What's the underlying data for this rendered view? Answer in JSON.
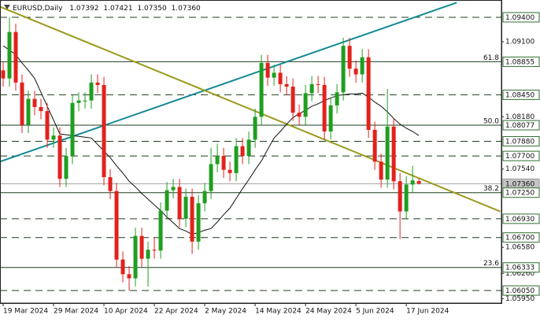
{
  "chart_data": {
    "type": "candlestick",
    "header": {
      "symbol": "EURUSD,Daily",
      "ohlc": [
        "1.07392",
        "1.07421",
        "1.07350",
        "1.07360"
      ]
    },
    "categories": [
      "19 Mar 2024",
      null,
      null,
      null,
      null,
      null,
      null,
      null,
      "29 Mar 2024",
      null,
      null,
      null,
      null,
      null,
      null,
      null,
      "10 Apr 2024",
      null,
      null,
      null,
      null,
      null,
      null,
      null,
      "22 Apr 2024",
      null,
      null,
      null,
      null,
      null,
      null,
      null,
      "2 May 2024",
      null,
      null,
      null,
      null,
      null,
      null,
      null,
      "14 May 2024",
      null,
      null,
      null,
      null,
      null,
      null,
      null,
      "24 May 2024",
      null,
      null,
      null,
      null,
      null,
      null,
      null,
      "5 Jun 2024",
      null,
      null,
      null,
      null,
      null,
      null,
      null,
      "17 Jun 2024",
      null,
      null
    ],
    "open": [
      1.0875,
      1.0865,
      1.0922,
      1.086,
      1.0808,
      1.084,
      1.083,
      1.0825,
      1.079,
      1.0795,
      1.0742,
      1.077,
      1.0835,
      1.0838,
      1.0838,
      1.086,
      1.0857,
      1.0744,
      1.0727,
      1.0643,
      1.0625,
      1.062,
      1.0672,
      1.0644,
      1.0655,
      1.0654,
      1.0703,
      1.0728,
      1.0732,
      1.0693,
      1.072,
      1.0665,
      1.0712,
      1.0727,
      1.076,
      1.077,
      1.0753,
      1.0749,
      1.0782,
      1.077,
      1.079,
      1.0818,
      1.0884,
      1.0866,
      1.0872,
      1.0858,
      1.0855,
      1.0823,
      1.0818,
      1.0847,
      1.0858,
      1.0857,
      1.08,
      1.0832,
      1.0848,
      1.0905,
      1.0877,
      1.087,
      1.0891,
      1.0802,
      1.0763,
      1.0741,
      1.0806,
      1.0739,
      1.0702,
      1.0735,
      1.07392
    ],
    "high": [
      1.0885,
      1.094,
      1.0932,
      1.087,
      1.085,
      1.085,
      1.084,
      1.0835,
      1.0805,
      1.0805,
      1.078,
      1.0845,
      1.0848,
      1.0848,
      1.087,
      1.087,
      1.0867,
      1.0754,
      1.0737,
      1.0653,
      1.0635,
      1.0682,
      1.0682,
      1.0665,
      1.067,
      1.0713,
      1.0738,
      1.0742,
      1.0742,
      1.073,
      1.073,
      1.0722,
      1.0737,
      1.078,
      1.0785,
      1.078,
      1.0763,
      1.0792,
      1.0792,
      1.08,
      1.0828,
      1.0894,
      1.0894,
      1.0882,
      1.0882,
      1.0868,
      1.0865,
      1.0833,
      1.0857,
      1.0868,
      1.0868,
      1.0867,
      1.0842,
      1.0858,
      1.0915,
      1.0915,
      1.0887,
      1.0901,
      1.0901,
      1.0812,
      1.0773,
      1.0852,
      1.0816,
      1.0749,
      1.0745,
      1.0758,
      1.07421
    ],
    "low": [
      1.0855,
      1.0855,
      1.085,
      1.0798,
      1.0798,
      1.082,
      1.0815,
      1.078,
      1.078,
      1.0732,
      1.0732,
      1.076,
      1.0825,
      1.0828,
      1.0828,
      1.0847,
      1.0734,
      1.0717,
      1.0633,
      1.0615,
      1.0605,
      1.061,
      1.0634,
      1.061,
      1.0644,
      1.0644,
      1.0693,
      1.0718,
      1.0683,
      1.0683,
      1.065,
      1.0655,
      1.0702,
      1.0717,
      1.075,
      1.0743,
      1.0739,
      1.0739,
      1.076,
      1.076,
      1.078,
      1.0808,
      1.0856,
      1.0856,
      1.0848,
      1.0845,
      1.0813,
      1.0808,
      1.0808,
      1.0837,
      1.0847,
      1.079,
      1.079,
      1.0822,
      1.0838,
      1.0867,
      1.086,
      1.086,
      1.0792,
      1.0753,
      1.0731,
      1.0731,
      1.0729,
      1.0668,
      1.0692,
      1.0725,
      1.0735
    ],
    "close": [
      1.0865,
      1.0922,
      1.086,
      1.0808,
      1.084,
      1.083,
      1.0825,
      1.079,
      1.0795,
      1.0742,
      1.077,
      1.0835,
      1.0838,
      1.0838,
      1.086,
      1.0857,
      1.0744,
      1.0727,
      1.0643,
      1.0625,
      1.062,
      1.0672,
      1.0644,
      1.0655,
      1.0654,
      1.0703,
      1.0728,
      1.0732,
      1.0693,
      1.072,
      1.0665,
      1.0712,
      1.0727,
      1.076,
      1.077,
      1.0753,
      1.0749,
      1.0782,
      1.077,
      1.079,
      1.0818,
      1.0884,
      1.0866,
      1.0872,
      1.0858,
      1.0855,
      1.0823,
      1.0818,
      1.0847,
      1.0858,
      1.0857,
      1.08,
      1.0832,
      1.0848,
      1.0905,
      1.0877,
      1.087,
      1.0891,
      1.0802,
      1.0763,
      1.0741,
      1.0806,
      1.0739,
      1.0702,
      1.0735,
      1.074,
      1.0736
    ],
    "up_color": "#1f9e1f",
    "down_color": "#e3211c",
    "moving_average": {
      "color": "#111111",
      "values": [
        1.0905,
        1.09,
        1.0894,
        1.0884,
        1.0875,
        1.0865,
        1.0848,
        1.0831,
        1.0814,
        1.0797,
        1.0796,
        1.0795,
        1.0794,
        1.0793,
        1.0792,
        1.0784,
        1.0776,
        1.0768,
        1.0758,
        1.0749,
        1.0739,
        1.0732,
        1.0724,
        1.0717,
        1.071,
        1.0703,
        1.0695,
        1.0688,
        1.0681,
        1.0678,
        1.0674,
        1.0676,
        1.0679,
        1.0681,
        1.0689,
        1.0698,
        1.0706,
        1.0718,
        1.073,
        1.0741,
        1.0753,
        1.0764,
        1.0778,
        1.0792,
        1.08,
        1.0809,
        1.0817,
        1.0822,
        1.0826,
        1.0831,
        1.0834,
        1.0838,
        1.0841,
        1.0844,
        1.0845,
        1.0846,
        1.0846,
        1.0847,
        1.0842,
        1.0836,
        1.0831,
        1.0824,
        1.0816,
        1.0809,
        1.0804,
        1.08,
        1.0795
      ]
    },
    "trendlines": [
      {
        "color": "#138a93",
        "start": [
          -0.5,
          1.0763
        ],
        "end": [
          72,
          1.0958
        ]
      },
      {
        "color": "#9a9a1c",
        "start": [
          -0.5,
          1.0953
        ],
        "end": [
          78.9,
          1.0702
        ]
      }
    ],
    "levels": [
      {
        "value": 1.094,
        "label": "1.09400",
        "style": "dashed"
      },
      {
        "value": 1.08855,
        "label": "1.08855",
        "style": "solid",
        "fib": "61.8"
      },
      {
        "value": 1.0845,
        "label": "1.08450",
        "style": "dashed"
      },
      {
        "value": 1.08077,
        "label": "1.08077",
        "style": "solid",
        "fib": "50.0"
      },
      {
        "value": 1.0788,
        "label": "1.07880",
        "style": "dashed"
      },
      {
        "value": 1.077,
        "label": "1.07700",
        "style": "dashed"
      },
      {
        "value": 1.0736,
        "label": "1.07360",
        "style": "current"
      },
      {
        "value": 1.0725,
        "label": "1.07250",
        "style": "solid",
        "fib": "38.2"
      },
      {
        "value": 1.0693,
        "label": "1.06930",
        "style": "dashed"
      },
      {
        "value": 1.067,
        "label": "1.06700",
        "style": "dashed"
      },
      {
        "value": 1.06333,
        "label": "1.06333",
        "style": "solid",
        "fib": "23.6"
      },
      {
        "value": 1.0605,
        "label": "1.06050",
        "style": "dashed"
      }
    ],
    "xlim": [
      -0.5,
      79.1
    ],
    "ylim": [
      1.05896,
      1.09612
    ],
    "yticks": [
      {
        "value": 1.091,
        "label": "1.09100"
      },
      {
        "value": 1.0818,
        "label": "1.08180"
      },
      {
        "value": 1.0754,
        "label": "1.07540"
      },
      {
        "value": 1.0658,
        "label": "1.06580"
      },
      {
        "value": 1.0626,
        "label": "1.06260"
      },
      {
        "value": 1.0595,
        "label": "1.05950"
      }
    ]
  }
}
